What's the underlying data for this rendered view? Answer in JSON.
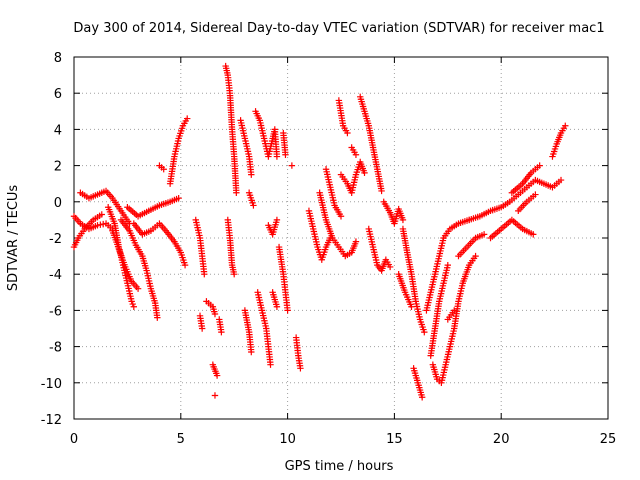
{
  "chart_data": {
    "type": "scatter",
    "title": "Day 300 of 2014, Sidereal Day-to-day VTEC variation (SDTVAR) for receiver mac1",
    "xlabel": "GPS time / hours",
    "ylabel": "SDTVAR / TECUs",
    "xlim": [
      0,
      25
    ],
    "ylim": [
      -12,
      8
    ],
    "xticks": [
      0,
      5,
      10,
      15,
      20,
      25
    ],
    "xtick_labels": [
      "0",
      "5",
      "10",
      "15",
      "20",
      "25"
    ],
    "yticks": [
      -12,
      -10,
      -8,
      -6,
      -4,
      -2,
      0,
      2,
      4,
      6,
      8
    ],
    "ytick_labels": [
      "-12",
      "-10",
      "-8",
      "-6",
      "-4",
      "-2",
      "0",
      "2",
      "4",
      "6",
      "8"
    ],
    "grid": true,
    "marker": "plus",
    "color": "#ff0000",
    "segments": [
      [
        [
          0.0,
          -2.5
        ],
        [
          0.2,
          -2.0
        ],
        [
          0.5,
          -1.5
        ],
        [
          0.9,
          -1.0
        ],
        [
          1.3,
          -0.7
        ]
      ],
      [
        [
          0.0,
          -0.8
        ],
        [
          0.3,
          -1.2
        ],
        [
          0.7,
          -1.5
        ],
        [
          1.1,
          -1.3
        ],
        [
          1.5,
          -1.2
        ],
        [
          1.8,
          -1.5
        ]
      ],
      [
        [
          0.3,
          0.5
        ],
        [
          0.7,
          0.2
        ],
        [
          1.1,
          0.4
        ],
        [
          1.5,
          0.6
        ],
        [
          1.8,
          0.2
        ],
        [
          2.2,
          -0.5
        ],
        [
          2.6,
          -1.2
        ]
      ],
      [
        [
          1.6,
          -0.3
        ],
        [
          1.9,
          -1.2
        ],
        [
          2.1,
          -2.5
        ],
        [
          2.3,
          -3.5
        ],
        [
          2.5,
          -4.5
        ],
        [
          2.7,
          -5.5
        ],
        [
          2.8,
          -5.8
        ]
      ],
      [
        [
          1.8,
          -1.6
        ],
        [
          2.1,
          -2.6
        ],
        [
          2.4,
          -3.6
        ],
        [
          2.7,
          -4.4
        ],
        [
          3.0,
          -4.8
        ]
      ],
      [
        [
          2.2,
          -1.0
        ],
        [
          2.6,
          -1.6
        ],
        [
          2.9,
          -2.4
        ],
        [
          3.2,
          -3.0
        ],
        [
          3.4,
          -3.8
        ],
        [
          3.6,
          -4.8
        ],
        [
          3.8,
          -5.6
        ],
        [
          3.9,
          -6.4
        ]
      ],
      [
        [
          2.5,
          -0.3
        ],
        [
          3.0,
          -0.8
        ],
        [
          3.5,
          -0.5
        ],
        [
          4.0,
          -0.2
        ],
        [
          4.5,
          0.0
        ],
        [
          4.9,
          0.2
        ]
      ],
      [
        [
          2.8,
          -1.2
        ],
        [
          3.2,
          -1.8
        ],
        [
          3.6,
          -1.6
        ],
        [
          4.0,
          -1.2
        ],
        [
          4.3,
          -1.6
        ],
        [
          4.7,
          -2.2
        ],
        [
          5.0,
          -2.8
        ],
        [
          5.2,
          -3.5
        ]
      ],
      [
        [
          4.5,
          1.0
        ],
        [
          4.7,
          2.5
        ],
        [
          4.9,
          3.5
        ],
        [
          5.1,
          4.2
        ],
        [
          5.3,
          4.6
        ]
      ],
      [
        [
          4.0,
          2.0
        ],
        [
          4.2,
          1.8
        ]
      ],
      [
        [
          5.7,
          -1.0
        ],
        [
          5.9,
          -2.0
        ],
        [
          6.0,
          -3.0
        ],
        [
          6.1,
          -4.0
        ]
      ],
      [
        [
          5.9,
          -6.3
        ],
        [
          6.0,
          -7.0
        ]
      ],
      [
        [
          6.2,
          -5.5
        ],
        [
          6.5,
          -5.8
        ],
        [
          6.6,
          -6.2
        ]
      ],
      [
        [
          6.5,
          -9.0
        ],
        [
          6.7,
          -9.6
        ]
      ],
      [
        [
          6.6,
          -10.7
        ]
      ],
      [
        [
          6.8,
          -6.5
        ],
        [
          6.9,
          -7.2
        ]
      ],
      [
        [
          7.1,
          7.5
        ],
        [
          7.2,
          7.0
        ],
        [
          7.3,
          6.0
        ],
        [
          7.4,
          4.0
        ],
        [
          7.5,
          2.5
        ],
        [
          7.6,
          0.5
        ]
      ],
      [
        [
          7.2,
          -1.0
        ],
        [
          7.3,
          -2.0
        ],
        [
          7.4,
          -3.5
        ],
        [
          7.5,
          -4.0
        ]
      ],
      [
        [
          7.8,
          4.5
        ],
        [
          8.0,
          3.5
        ],
        [
          8.2,
          2.5
        ],
        [
          8.3,
          1.5
        ]
      ],
      [
        [
          8.2,
          0.5
        ],
        [
          8.4,
          -0.2
        ]
      ],
      [
        [
          8.0,
          -6.0
        ],
        [
          8.2,
          -7.2
        ],
        [
          8.3,
          -8.3
        ]
      ],
      [
        [
          8.5,
          5.0
        ],
        [
          8.7,
          4.5
        ],
        [
          8.9,
          3.5
        ],
        [
          9.1,
          2.5
        ],
        [
          9.3,
          3.5
        ],
        [
          9.4,
          4.0
        ],
        [
          9.5,
          2.5
        ]
      ],
      [
        [
          8.6,
          -5.0
        ],
        [
          8.8,
          -6.0
        ],
        [
          9.0,
          -7.0
        ],
        [
          9.1,
          -8.0
        ],
        [
          9.2,
          -9.0
        ]
      ],
      [
        [
          9.1,
          -1.3
        ],
        [
          9.3,
          -1.8
        ],
        [
          9.5,
          -1.0
        ]
      ],
      [
        [
          9.3,
          -5.0
        ],
        [
          9.5,
          -5.8
        ]
      ],
      [
        [
          9.8,
          3.8
        ],
        [
          9.9,
          2.6
        ]
      ],
      [
        [
          9.6,
          -2.5
        ],
        [
          9.8,
          -4.0
        ],
        [
          9.9,
          -5.0
        ],
        [
          10.0,
          -6.0
        ]
      ],
      [
        [
          10.2,
          2.0
        ]
      ],
      [
        [
          10.4,
          -7.5
        ],
        [
          10.5,
          -8.5
        ],
        [
          10.6,
          -9.2
        ]
      ],
      [
        [
          11.0,
          -0.5
        ],
        [
          11.2,
          -1.5
        ],
        [
          11.4,
          -2.5
        ],
        [
          11.6,
          -3.2
        ],
        [
          11.8,
          -2.5
        ],
        [
          12.0,
          -2.0
        ]
      ],
      [
        [
          11.5,
          0.5
        ],
        [
          11.8,
          -1.0
        ],
        [
          12.1,
          -2.0
        ],
        [
          12.4,
          -2.5
        ],
        [
          12.7,
          -3.0
        ],
        [
          13.0,
          -2.8
        ],
        [
          13.2,
          -2.2
        ]
      ],
      [
        [
          11.8,
          1.8
        ],
        [
          12.0,
          0.8
        ],
        [
          12.2,
          -0.2
        ],
        [
          12.5,
          -0.8
        ]
      ],
      [
        [
          12.4,
          5.6
        ],
        [
          12.6,
          4.2
        ],
        [
          12.8,
          3.8
        ]
      ],
      [
        [
          12.5,
          1.5
        ],
        [
          12.8,
          1.0
        ],
        [
          13.0,
          0.5
        ],
        [
          13.2,
          1.5
        ],
        [
          13.4,
          2.2
        ],
        [
          13.6,
          1.6
        ]
      ],
      [
        [
          13.0,
          3.0
        ],
        [
          13.2,
          2.6
        ]
      ],
      [
        [
          13.4,
          5.8
        ],
        [
          13.6,
          5.0
        ],
        [
          13.8,
          4.2
        ],
        [
          14.0,
          3.0
        ],
        [
          14.2,
          1.8
        ],
        [
          14.4,
          0.6
        ]
      ],
      [
        [
          13.8,
          -1.5
        ],
        [
          14.0,
          -2.5
        ],
        [
          14.2,
          -3.5
        ],
        [
          14.4,
          -3.8
        ],
        [
          14.6,
          -3.2
        ],
        [
          14.8,
          -3.6
        ]
      ],
      [
        [
          14.5,
          0.0
        ],
        [
          14.8,
          -0.6
        ],
        [
          15.0,
          -1.2
        ],
        [
          15.2,
          -0.4
        ],
        [
          15.4,
          -1.0
        ]
      ],
      [
        [
          15.4,
          -1.5
        ],
        [
          15.6,
          -2.8
        ],
        [
          15.8,
          -4.0
        ],
        [
          16.0,
          -5.5
        ],
        [
          16.2,
          -6.5
        ],
        [
          16.4,
          -7.2
        ]
      ],
      [
        [
          15.2,
          -4.0
        ],
        [
          15.5,
          -5.0
        ],
        [
          15.8,
          -5.8
        ]
      ],
      [
        [
          15.9,
          -9.2
        ],
        [
          16.1,
          -10.0
        ],
        [
          16.3,
          -10.8
        ]
      ],
      [
        [
          16.5,
          -6.0
        ],
        [
          16.7,
          -5.0
        ],
        [
          16.9,
          -4.0
        ],
        [
          17.1,
          -3.0
        ],
        [
          17.3,
          -2.0
        ],
        [
          17.6,
          -1.5
        ],
        [
          18.0,
          -1.2
        ],
        [
          18.5,
          -1.0
        ]
      ],
      [
        [
          16.7,
          -8.5
        ],
        [
          16.9,
          -7.0
        ],
        [
          17.1,
          -5.5
        ],
        [
          17.3,
          -4.5
        ],
        [
          17.5,
          -3.5
        ]
      ],
      [
        [
          16.8,
          -9.0
        ],
        [
          17.0,
          -9.8
        ],
        [
          17.2,
          -10.0
        ],
        [
          17.4,
          -9.0
        ],
        [
          17.6,
          -8.0
        ],
        [
          17.8,
          -7.0
        ],
        [
          18.0,
          -5.5
        ],
        [
          18.2,
          -4.5
        ],
        [
          18.5,
          -3.5
        ],
        [
          18.8,
          -3.0
        ]
      ],
      [
        [
          17.5,
          -6.5
        ],
        [
          17.8,
          -6.0
        ]
      ],
      [
        [
          18.0,
          -3.0
        ],
        [
          18.4,
          -2.5
        ],
        [
          18.8,
          -2.0
        ],
        [
          19.2,
          -1.8
        ]
      ],
      [
        [
          18.5,
          -1.0
        ],
        [
          19.0,
          -0.8
        ],
        [
          19.5,
          -0.5
        ],
        [
          20.0,
          -0.3
        ],
        [
          20.4,
          0.0
        ],
        [
          20.8,
          0.4
        ],
        [
          21.2,
          0.8
        ],
        [
          21.6,
          1.2
        ],
        [
          22.0,
          1.0
        ],
        [
          22.4,
          0.8
        ],
        [
          22.8,
          1.2
        ]
      ],
      [
        [
          19.5,
          -2.0
        ],
        [
          20.0,
          -1.5
        ],
        [
          20.5,
          -1.0
        ],
        [
          21.0,
          -1.5
        ],
        [
          21.5,
          -1.8
        ]
      ],
      [
        [
          20.5,
          0.5
        ],
        [
          21.0,
          1.0
        ],
        [
          21.4,
          1.6
        ],
        [
          21.8,
          2.0
        ]
      ],
      [
        [
          20.8,
          -0.5
        ],
        [
          21.2,
          0.0
        ],
        [
          21.6,
          0.4
        ]
      ],
      [
        [
          22.4,
          2.5
        ],
        [
          22.6,
          3.2
        ],
        [
          22.8,
          3.8
        ],
        [
          23.0,
          4.2
        ]
      ]
    ]
  }
}
